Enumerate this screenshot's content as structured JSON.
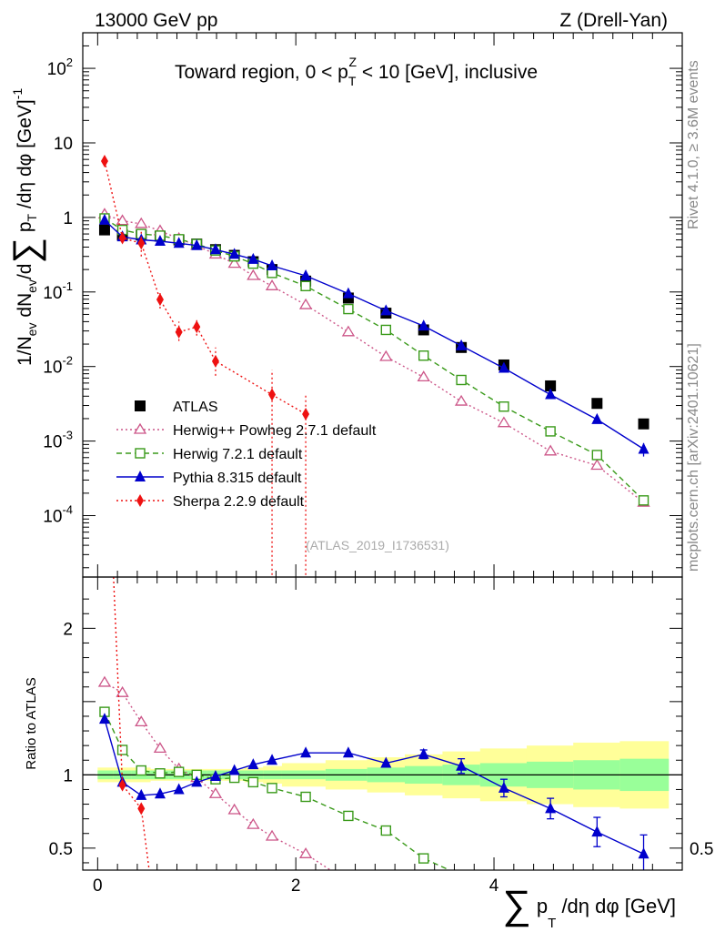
{
  "header": {
    "energy_label": "13000 GeV pp",
    "process_label": "Z (Drell-Yan)"
  },
  "side_labels": {
    "rivet": "Rivet 4.1.0, ≥ 3.6M events",
    "mcplots": "mcplots.cern.ch [arXiv:2401.10621]"
  },
  "colors": {
    "atlas": "#000000",
    "herwigpp": "#cc5588",
    "herwig7": "#3a9a1a",
    "pythia": "#0000cc",
    "sherpa": "#ee1111",
    "band_stat": "#99ff99",
    "band_total": "#ffff99"
  },
  "chart_data": [
    {
      "id": "main",
      "type": "scatter",
      "title": "Toward region, 0 < p_T^Z < 10 [GeV], inclusive",
      "title_parts": {
        "main": "Toward region, 0 < p",
        "sub": "T",
        "sup": "Z",
        "tail": " < 10 [GeV], inclusive"
      },
      "ylabel": "1/N_ev dN_ev/d∑ p_T /dη dφ [GeV]^-1",
      "ylabel_parts": {
        "a": "1/N",
        "a_sub": "ev",
        "b": " dN",
        "b_sub": "ev",
        "c": "/d",
        "sigma": "∑",
        "d": " p",
        "d_sub": "T",
        "e": " /dη dφ  [GeV]",
        "e_sup": "-1"
      },
      "yscale": "log",
      "ylim": [
        1.5e-05,
        300
      ],
      "xlim": [
        -0.15,
        5.9
      ],
      "y_tick_labels": [
        {
          "v": 0.0001,
          "base": "10",
          "exp": "-4"
        },
        {
          "v": 0.001,
          "base": "10",
          "exp": "-3"
        },
        {
          "v": 0.01,
          "base": "10",
          "exp": "-2"
        },
        {
          "v": 0.1,
          "base": "10",
          "exp": "-1"
        },
        {
          "v": 1,
          "base": "1",
          "exp": ""
        },
        {
          "v": 10,
          "base": "10",
          "exp": ""
        },
        {
          "v": 100,
          "base": "10",
          "exp": "2"
        }
      ],
      "watermark": "(ATLAS_2019_I1736531)",
      "legend_position": "bottom-left",
      "series": [
        {
          "name": "ATLAS",
          "key": "atlas",
          "marker": "square",
          "line": "none",
          "x": [
            0.07,
            0.25,
            0.44,
            0.63,
            0.82,
            1.0,
            1.19,
            1.38,
            1.57,
            1.76,
            2.1,
            2.53,
            2.91,
            3.29,
            3.67,
            4.1,
            4.57,
            5.04,
            5.51
          ],
          "y": [
            0.68,
            0.58,
            0.58,
            0.56,
            0.5,
            0.44,
            0.37,
            0.31,
            0.255,
            0.2,
            0.14,
            0.083,
            0.052,
            0.031,
            0.018,
            0.0105,
            0.0055,
            0.0032,
            0.0017
          ]
        },
        {
          "name": "Herwig++ Powheg 2.7.1 default",
          "key": "herwigpp",
          "marker": "open-triangle",
          "line": "dotted",
          "x": [
            0.07,
            0.25,
            0.44,
            0.63,
            0.82,
            1.0,
            1.19,
            1.38,
            1.57,
            1.76,
            2.1,
            2.53,
            2.91,
            3.29,
            3.67,
            4.1,
            4.57,
            5.04,
            5.51
          ],
          "y": [
            1.1,
            0.9,
            0.82,
            0.66,
            0.52,
            0.42,
            0.32,
            0.24,
            0.165,
            0.12,
            0.067,
            0.029,
            0.0135,
            0.0072,
            0.0034,
            0.00175,
            0.00073,
            0.00047,
            0.00015
          ]
        },
        {
          "name": "Herwig 7.2.1 default",
          "key": "herwig7",
          "marker": "open-square",
          "line": "dashed",
          "x": [
            0.07,
            0.25,
            0.44,
            0.63,
            0.82,
            1.0,
            1.19,
            1.38,
            1.57,
            1.76,
            2.1,
            2.53,
            2.91,
            3.29,
            3.67,
            4.1,
            4.57,
            5.04,
            5.51
          ],
          "y": [
            0.97,
            0.68,
            0.6,
            0.57,
            0.51,
            0.44,
            0.36,
            0.3,
            0.24,
            0.18,
            0.12,
            0.059,
            0.031,
            0.014,
            0.0066,
            0.0029,
            0.00135,
            0.00065,
            0.00016
          ]
        },
        {
          "name": "Pythia 8.315 default",
          "key": "pythia",
          "marker": "triangle",
          "line": "solid",
          "x": [
            0.07,
            0.25,
            0.44,
            0.63,
            0.82,
            1.0,
            1.19,
            1.38,
            1.57,
            1.76,
            2.1,
            2.53,
            2.91,
            3.29,
            3.67,
            4.1,
            4.57,
            5.04,
            5.51
          ],
          "y": [
            0.92,
            0.55,
            0.5,
            0.48,
            0.45,
            0.42,
            0.37,
            0.32,
            0.275,
            0.225,
            0.165,
            0.095,
            0.056,
            0.035,
            0.019,
            0.0095,
            0.0042,
            0.00195,
            0.00078
          ],
          "yerr": [
            0,
            0,
            0,
            0,
            0,
            0,
            0,
            0,
            0,
            0,
            0,
            0,
            0,
            0,
            0,
            0,
            0.0003,
            0.0002,
            0.00016
          ]
        },
        {
          "name": "Sherpa 2.2.9 default",
          "key": "sherpa",
          "marker": "diamond",
          "line": "dotted",
          "x": [
            0.07,
            0.25,
            0.44,
            0.63,
            0.82,
            1.0,
            1.19,
            1.76,
            2.1
          ],
          "y": [
            5.7,
            0.53,
            0.45,
            0.079,
            0.029,
            0.034,
            0.0118,
            0.0042,
            0.0023
          ],
          "ylo": [
            5.5,
            0.5,
            0.3,
            0.06,
            0.022,
            0.026,
            0.0075,
            1.6e-05,
            1.6e-05
          ],
          "yhi": [
            5.9,
            0.56,
            0.65,
            0.1,
            0.04,
            0.044,
            0.018,
            0.009,
            0.0042
          ]
        }
      ]
    },
    {
      "id": "ratio",
      "type": "line",
      "ylabel": "Ratio to ATLAS",
      "xlabel": "∑ p_T /dη dφ [GeV]",
      "xlabel_parts": {
        "sigma": "∑",
        "p": " p",
        "sub": "T",
        "tail": " /dη dφ [GeV]"
      },
      "ylim": [
        0.35,
        2.35
      ],
      "xlim": [
        -0.15,
        5.9
      ],
      "x_ticks": [
        0,
        2,
        4
      ],
      "y_tick_labels": [
        0.5,
        1,
        2
      ],
      "y_tick_text": [
        "0.5",
        "1",
        "2"
      ],
      "band_edges": [
        0.0,
        0.16,
        0.34,
        0.53,
        0.72,
        0.91,
        1.1,
        1.29,
        1.48,
        1.67,
        1.86,
        2.3,
        2.72,
        3.1,
        3.48,
        3.86,
        4.33,
        4.8,
        5.27,
        5.76
      ],
      "band_stat": [
        0.03,
        0.03,
        0.03,
        0.03,
        0.03,
        0.03,
        0.03,
        0.03,
        0.03,
        0.03,
        0.03,
        0.04,
        0.05,
        0.06,
        0.07,
        0.08,
        0.09,
        0.1,
        0.11
      ],
      "band_total": [
        0.05,
        0.05,
        0.05,
        0.04,
        0.04,
        0.04,
        0.04,
        0.04,
        0.05,
        0.06,
        0.08,
        0.1,
        0.12,
        0.14,
        0.16,
        0.18,
        0.2,
        0.22,
        0.23
      ],
      "series": [
        {
          "name": "Herwig++ Powheg 2.7.1 default",
          "key": "herwigpp",
          "marker": "open-triangle",
          "line": "dotted",
          "x": [
            0.07,
            0.25,
            0.44,
            0.63,
            0.82,
            1.0,
            1.19,
            1.38,
            1.57,
            1.76,
            2.1,
            2.35
          ],
          "y": [
            1.63,
            1.56,
            1.36,
            1.18,
            1.04,
            0.98,
            0.87,
            0.76,
            0.66,
            0.58,
            0.46,
            0.35
          ]
        },
        {
          "name": "Herwig 7.2.1 default",
          "key": "herwig7",
          "marker": "open-square",
          "line": "dashed",
          "x": [
            0.07,
            0.25,
            0.44,
            0.63,
            0.82,
            1.0,
            1.19,
            1.38,
            1.57,
            1.76,
            2.1,
            2.53,
            2.91,
            3.29,
            3.55
          ],
          "y": [
            1.43,
            1.17,
            1.03,
            1.01,
            1.02,
            1.0,
            0.97,
            0.98,
            0.95,
            0.91,
            0.85,
            0.72,
            0.62,
            0.43,
            0.35
          ]
        },
        {
          "name": "Pythia 8.315 default",
          "key": "pythia",
          "marker": "triangle",
          "line": "solid",
          "x": [
            0.07,
            0.25,
            0.44,
            0.63,
            0.82,
            1.0,
            1.19,
            1.38,
            1.57,
            1.76,
            2.1,
            2.53,
            2.91,
            3.29,
            3.67,
            4.1,
            4.57,
            5.04,
            5.51
          ],
          "y": [
            1.38,
            0.95,
            0.86,
            0.87,
            0.9,
            0.95,
            0.99,
            1.03,
            1.07,
            1.1,
            1.15,
            1.15,
            1.08,
            1.14,
            1.06,
            0.91,
            0.77,
            0.61,
            0.46
          ],
          "yerr": [
            0,
            0,
            0,
            0,
            0,
            0,
            0,
            0,
            0,
            0,
            0,
            0,
            0,
            0.03,
            0.05,
            0.06,
            0.07,
            0.1,
            0.13
          ]
        },
        {
          "name": "Sherpa 2.2.9 default",
          "key": "sherpa",
          "marker": "diamond",
          "line": "dotted",
          "x": [
            0.16,
            0.25,
            0.44,
            0.52
          ],
          "y": [
            2.35,
            0.93,
            0.77,
            0.35
          ]
        }
      ]
    }
  ]
}
